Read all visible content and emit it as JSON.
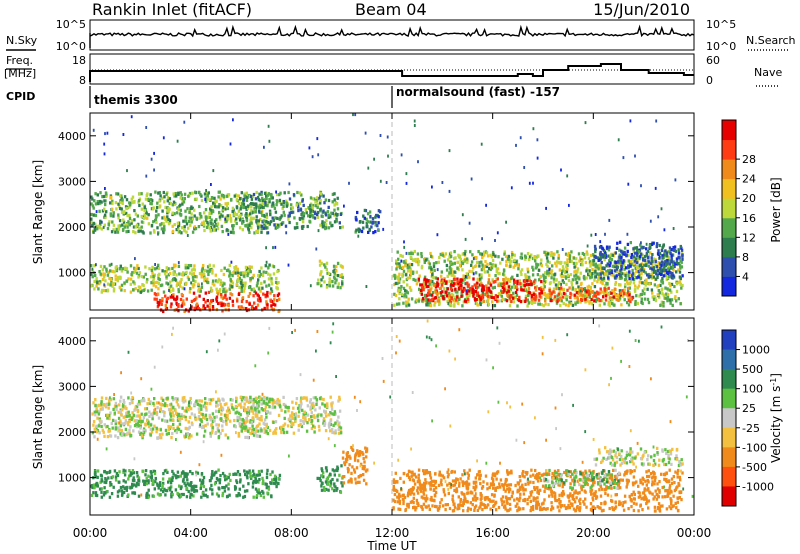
{
  "header": {
    "station": "Rankin Inlet (fitACF)",
    "beam": "Beam 04",
    "date": "15/Jun/2010"
  },
  "noise_panel": {
    "left_label": "N.Sky",
    "right_label": "N.Search",
    "left_ticks": [
      "10^5",
      "10^0"
    ],
    "right_ticks": [
      "10^5",
      "10^0"
    ]
  },
  "freq_panel": {
    "left_label_line1": "Freq.",
    "left_label_line2": "[MHz]",
    "right_label": "Nave",
    "left_ticks": [
      "18",
      "8"
    ],
    "right_ticks": [
      "60",
      "0"
    ]
  },
  "cpid_panel": {
    "label": "CPID",
    "segments": [
      {
        "name": "themis 3300",
        "start_hour": 0
      },
      {
        "name": "normalsound (fast) -157",
        "start_hour": 12
      }
    ]
  },
  "axes": {
    "ylabel": "Slant Range [km]",
    "yticks": [
      "1000",
      "2000",
      "3000",
      "4000"
    ],
    "xticks": [
      "00:00",
      "04:00",
      "08:00",
      "12:00",
      "16:00",
      "20:00",
      "00:00"
    ],
    "xlabel": "Time UT"
  },
  "power_colorbar": {
    "label": "Power [dB]",
    "ticks": [
      "4",
      "8",
      "12",
      "16",
      "20",
      "24",
      "28"
    ],
    "colors": [
      "#1428e0",
      "#2e4fae",
      "#2e7d4f",
      "#52a84a",
      "#bcd83a",
      "#f0c020",
      "#f08a1a",
      "#ff3c14",
      "#e60000"
    ]
  },
  "velocity_colorbar": {
    "label": "Velocity [m s",
    "label_sup": "-1",
    "label_end": "]",
    "ticks": [
      "1000",
      "500",
      "100",
      "25",
      "-25",
      "-100",
      "-500",
      "-1000"
    ],
    "colors": [
      "#2040c0",
      "#2e6faa",
      "#2e8a4f",
      "#5cc040",
      "#c8c8c8",
      "#f4c040",
      "#f08a1a",
      "#ff5010",
      "#e00000"
    ]
  },
  "chart_data": [
    {
      "type": "heatmap",
      "title": "Power [dB]",
      "xlabel": "Time UT",
      "ylabel": "Slant Range [km]",
      "xlim": [
        0,
        24
      ],
      "ylim": [
        180,
        4500
      ],
      "clim": [
        0,
        30
      ],
      "regions": [
        {
          "t": [
            0.0,
            7.0
          ],
          "r": [
            1900,
            2800
          ],
          "value": 12
        },
        {
          "t": [
            6.0,
            10.0
          ],
          "r": [
            2000,
            2800
          ],
          "value": 10
        },
        {
          "t": [
            0.0,
            7.5
          ],
          "r": [
            600,
            1200
          ],
          "value": 14
        },
        {
          "t": [
            2.5,
            7.5
          ],
          "r": [
            180,
            600
          ],
          "value": 26
        },
        {
          "t": [
            9.0,
            10.0
          ],
          "r": [
            700,
            1300
          ],
          "value": 14
        },
        {
          "t": [
            10.5,
            11.5
          ],
          "r": [
            1900,
            2400
          ],
          "value": 6
        },
        {
          "t": [
            12.0,
            23.5
          ],
          "r": [
            300,
            1500
          ],
          "value": 14
        },
        {
          "t": [
            13.0,
            18.0
          ],
          "r": [
            400,
            900
          ],
          "value": 27
        },
        {
          "t": [
            18.0,
            21.5
          ],
          "r": [
            400,
            700
          ],
          "value": 24
        },
        {
          "t": [
            20.0,
            23.5
          ],
          "r": [
            900,
            1700
          ],
          "value": 6
        }
      ]
    },
    {
      "type": "heatmap",
      "title": "Velocity [m s-1]",
      "xlabel": "Time UT",
      "ylabel": "Slant Range [km]",
      "xlim": [
        0,
        24
      ],
      "ylim": [
        180,
        4500
      ],
      "clim": [
        -1000,
        1000
      ],
      "regions": [
        {
          "t": [
            0.0,
            7.0
          ],
          "r": [
            1900,
            2800
          ],
          "value": 0
        },
        {
          "t": [
            6.0,
            10.0
          ],
          "r": [
            2000,
            2800
          ],
          "value": 0
        },
        {
          "t": [
            0.0,
            7.5
          ],
          "r": [
            600,
            1200
          ],
          "value": 150
        },
        {
          "t": [
            9.0,
            10.0
          ],
          "r": [
            700,
            1300
          ],
          "value": 150
        },
        {
          "t": [
            10.0,
            11.0
          ],
          "r": [
            900,
            1700
          ],
          "value": -300
        },
        {
          "t": [
            12.0,
            23.5
          ],
          "r": [
            300,
            1200
          ],
          "value": -200
        },
        {
          "t": [
            18.0,
            21.0
          ],
          "r": [
            800,
            1200
          ],
          "value": 60
        },
        {
          "t": [
            20.0,
            23.5
          ],
          "r": [
            1300,
            1700
          ],
          "value": 0
        }
      ]
    }
  ]
}
